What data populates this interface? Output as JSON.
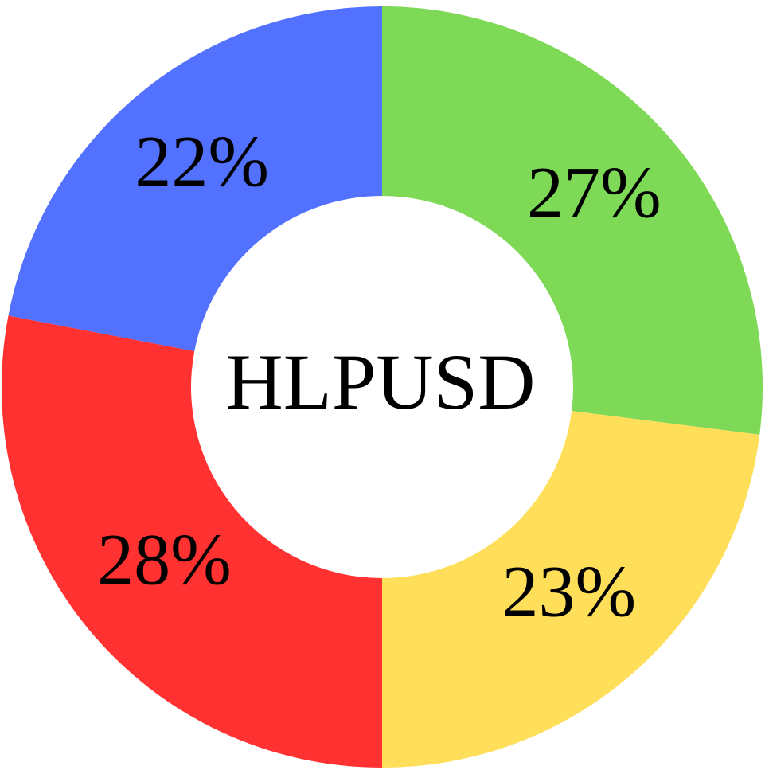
{
  "chart_data": {
    "type": "donut",
    "title": "HLPUSD",
    "values": [
      27,
      23,
      28,
      22
    ],
    "value_labels": [
      "27%",
      "23%",
      "28%",
      "22%"
    ],
    "colors": [
      "#7ed957",
      "#ffde59",
      "#ff3131",
      "#5271ff"
    ]
  }
}
